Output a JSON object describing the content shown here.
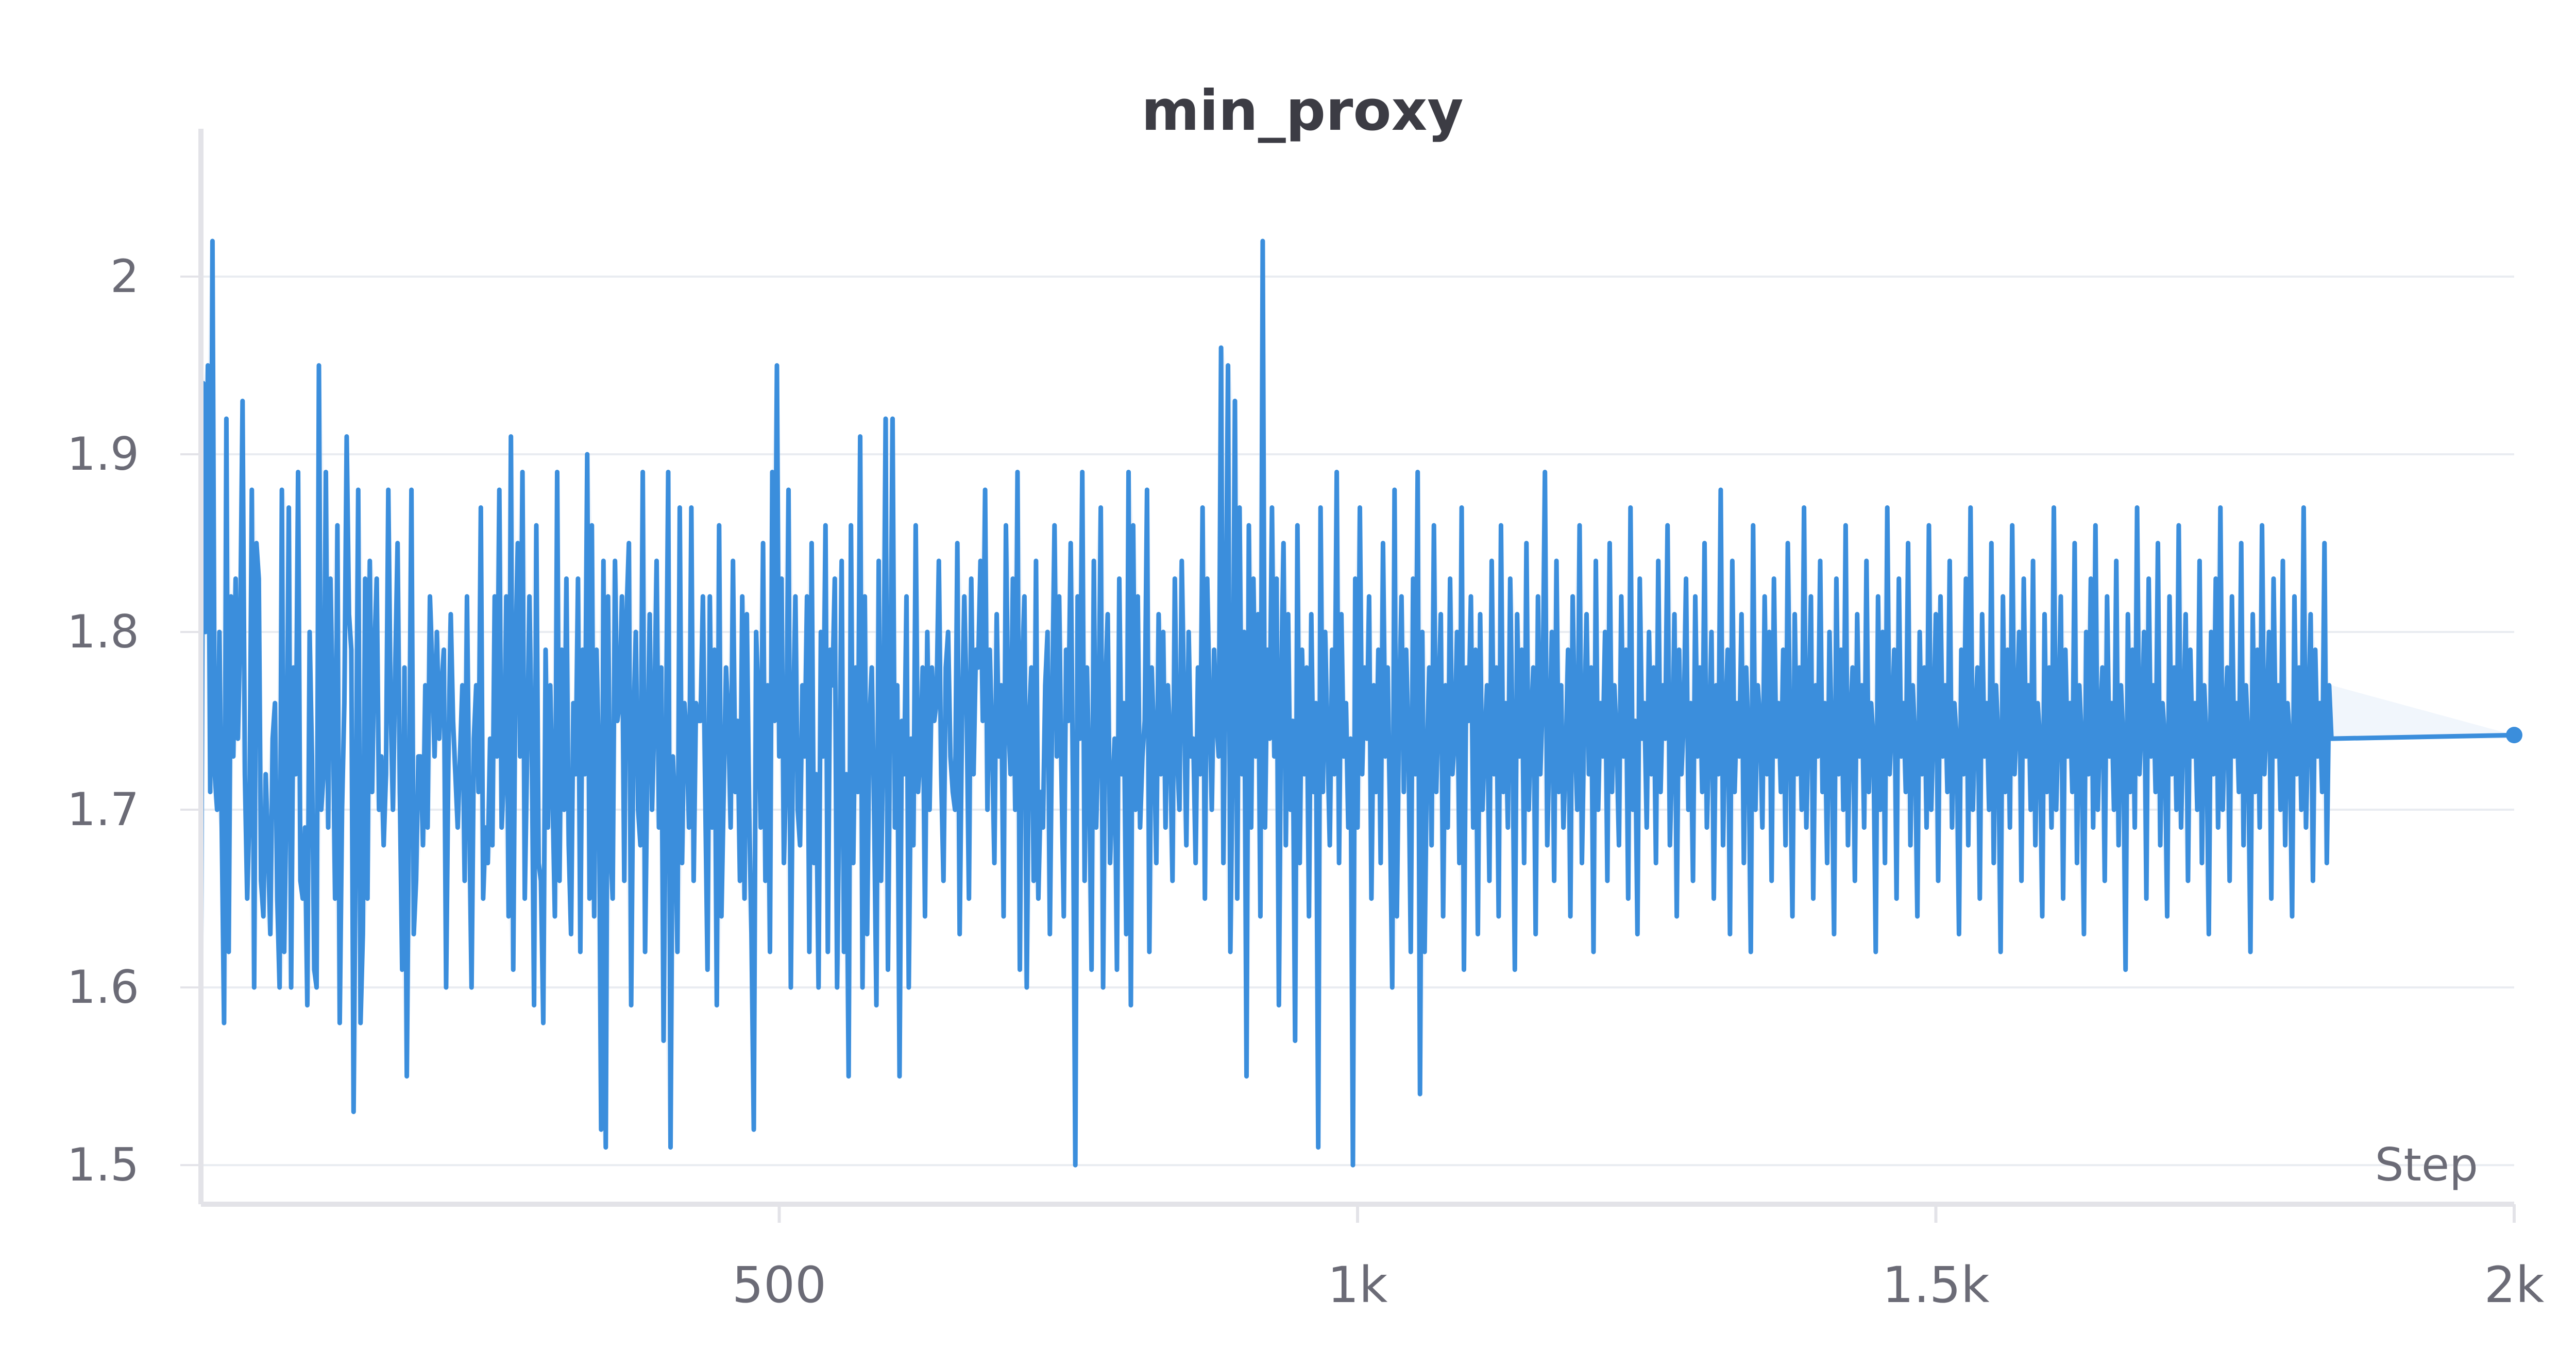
{
  "chart_data": {
    "type": "line",
    "title": "min_proxy",
    "xlabel": "Step",
    "ylabel": "",
    "xlim": [
      0,
      2000
    ],
    "ylim": [
      1.478,
      2.06
    ],
    "x_ticks": [
      500,
      1000,
      1500,
      2000
    ],
    "x_tick_labels": [
      "500",
      "1k",
      "1.5k",
      "2k"
    ],
    "y_ticks": [
      1.5,
      1.6,
      1.7,
      1.8,
      1.9,
      2.0
    ],
    "y_tick_labels": [
      "1.5",
      "1.6",
      "1.7",
      "1.8",
      "1.9",
      "2"
    ],
    "grid": true,
    "legend": "none",
    "series_color": "#3b8edc",
    "band_color": "#d6e6f5",
    "axis_color": "#e3e3e8",
    "grid_color": "#e9ecf1",
    "series": [
      {
        "step_start": 0,
        "step_interval": 2,
        "last_step": 2000,
        "last_value": 1.742,
        "values": [
          1.59,
          1.94,
          1.8,
          1.95,
          1.71,
          2.02,
          1.72,
          1.7,
          1.8,
          1.69,
          1.58,
          1.92,
          1.62,
          1.82,
          1.73,
          1.83,
          1.74,
          1.8,
          1.93,
          1.72,
          1.65,
          1.7,
          1.88,
          1.6,
          1.85,
          1.83,
          1.66,
          1.64,
          1.72,
          1.68,
          1.63,
          1.74,
          1.76,
          1.65,
          1.6,
          1.88,
          1.62,
          1.71,
          1.87,
          1.6,
          1.78,
          1.72,
          1.89,
          1.66,
          1.65,
          1.69,
          1.59,
          1.8,
          1.73,
          1.61,
          1.6,
          1.95,
          1.7,
          1.72,
          1.89,
          1.69,
          1.83,
          1.76,
          1.65,
          1.86,
          1.58,
          1.7,
          1.76,
          1.91,
          1.81,
          1.79,
          1.53,
          1.7,
          1.88,
          1.58,
          1.63,
          1.83,
          1.65,
          1.84,
          1.71,
          1.79,
          1.83,
          1.7,
          1.73,
          1.68,
          1.72,
          1.88,
          1.76,
          1.7,
          1.78,
          1.85,
          1.71,
          1.61,
          1.78,
          1.55,
          1.71,
          1.88,
          1.63,
          1.66,
          1.73,
          1.73,
          1.68,
          1.77,
          1.69,
          1.82,
          1.78,
          1.73,
          1.8,
          1.74,
          1.77,
          1.79,
          1.6,
          1.73,
          1.81,
          1.75,
          1.72,
          1.69,
          1.73,
          1.77,
          1.66,
          1.82,
          1.7,
          1.6,
          1.74,
          1.77,
          1.71,
          1.87,
          1.65,
          1.69,
          1.67,
          1.74,
          1.68,
          1.82,
          1.73,
          1.88,
          1.69,
          1.72,
          1.82,
          1.64,
          1.91,
          1.61,
          1.79,
          1.85,
          1.73,
          1.89,
          1.65,
          1.73,
          1.82,
          1.74,
          1.59,
          1.86,
          1.67,
          1.66,
          1.58,
          1.79,
          1.69,
          1.77,
          1.71,
          1.64,
          1.89,
          1.66,
          1.79,
          1.7,
          1.83,
          1.68,
          1.63,
          1.76,
          1.72,
          1.83,
          1.62,
          1.79,
          1.72,
          1.9,
          1.65,
          1.86,
          1.64,
          1.79,
          1.73,
          1.52,
          1.84,
          1.51,
          1.82,
          1.68,
          1.65,
          1.84,
          1.75,
          1.76,
          1.82,
          1.66,
          1.81,
          1.85,
          1.59,
          1.75,
          1.8,
          1.7,
          1.68,
          1.89,
          1.62,
          1.73,
          1.81,
          1.7,
          1.75,
          1.84,
          1.69,
          1.78,
          1.57,
          1.73,
          1.89,
          1.51,
          1.73,
          1.7,
          1.62,
          1.87,
          1.67,
          1.76,
          1.74,
          1.69,
          1.87,
          1.66,
          1.76,
          1.75,
          1.75,
          1.82,
          1.71,
          1.61,
          1.82,
          1.69,
          1.79,
          1.59,
          1.86,
          1.64,
          1.71,
          1.78,
          1.75,
          1.69,
          1.84,
          1.71,
          1.75,
          1.66,
          1.82,
          1.65,
          1.81,
          1.7,
          1.63,
          1.52,
          1.8,
          1.76,
          1.69,
          1.85,
          1.66,
          1.77,
          1.62,
          1.89,
          1.75,
          1.95,
          1.73,
          1.83,
          1.67,
          1.72,
          1.88,
          1.6,
          1.75,
          1.82,
          1.7,
          1.68,
          1.77,
          1.73,
          1.82,
          1.62,
          1.85,
          1.67,
          1.72,
          1.6,
          1.8,
          1.73,
          1.86,
          1.62,
          1.79,
          1.77,
          1.83,
          1.6,
          1.71,
          1.84,
          1.62,
          1.72,
          1.55,
          1.86,
          1.67,
          1.78,
          1.71,
          1.91,
          1.6,
          1.82,
          1.63,
          1.75,
          1.78,
          1.7,
          1.59,
          1.84,
          1.66,
          1.74,
          1.92,
          1.61,
          1.76,
          1.92,
          1.69,
          1.77,
          1.55,
          1.75,
          1.72,
          1.82,
          1.6,
          1.74,
          1.68,
          1.86,
          1.71,
          1.73,
          1.78,
          1.64,
          1.8,
          1.7,
          1.78,
          1.75,
          1.76,
          1.84,
          1.72,
          1.66,
          1.78,
          1.8,
          1.73,
          1.71,
          1.7,
          1.85,
          1.63,
          1.75,
          1.82,
          1.76,
          1.65,
          1.83,
          1.72,
          1.79,
          1.78,
          1.84,
          1.75,
          1.88,
          1.7,
          1.79,
          1.74,
          1.67,
          1.81,
          1.73,
          1.77,
          1.64,
          1.86,
          1.75,
          1.72,
          1.83,
          1.7,
          1.89,
          1.61,
          1.78,
          1.82,
          1.6,
          1.75,
          1.78,
          1.66,
          1.84,
          1.65,
          1.71,
          1.69,
          1.77,
          1.8,
          1.63,
          1.76,
          1.86,
          1.73,
          1.82,
          1.72,
          1.64,
          1.79,
          1.75,
          1.85,
          1.71,
          1.5,
          1.82,
          1.74,
          1.89,
          1.66,
          1.78,
          1.72,
          1.61,
          1.84,
          1.69,
          1.74,
          1.87,
          1.6,
          1.77,
          1.81,
          1.67,
          1.71,
          1.74,
          1.61,
          1.83,
          1.72,
          1.76,
          1.63,
          1.89,
          1.59,
          1.86,
          1.7,
          1.82,
          1.69,
          1.73,
          1.75,
          1.88,
          1.62,
          1.78,
          1.74,
          1.67,
          1.81,
          1.72,
          1.8,
          1.69,
          1.77,
          1.74,
          1.66,
          1.83,
          1.73,
          1.7,
          1.84,
          1.76,
          1.68,
          1.8,
          1.73,
          1.74,
          1.67,
          1.78,
          1.72,
          1.87,
          1.65,
          1.83,
          1.76,
          1.7,
          1.79,
          1.75,
          1.73,
          1.96,
          1.67,
          1.79,
          1.95,
          1.62,
          1.73,
          1.93,
          1.65,
          1.87,
          1.72,
          1.8,
          1.55,
          1.86,
          1.69,
          1.83,
          1.73,
          1.81,
          1.64,
          2.02,
          1.69,
          1.79,
          1.74,
          1.87,
          1.73,
          1.83,
          1.59,
          1.77,
          1.85,
          1.68,
          1.81,
          1.7,
          1.75,
          1.57,
          1.86,
          1.67,
          1.79,
          1.72,
          1.78,
          1.64,
          1.81,
          1.71,
          1.76,
          1.51,
          1.87,
          1.71,
          1.8,
          1.74,
          1.68,
          1.79,
          1.72,
          1.89,
          1.67,
          1.81,
          1.73,
          1.76,
          1.69,
          1.74,
          1.5,
          1.83,
          1.69,
          1.87,
          1.72,
          1.78,
          1.74,
          1.82,
          1.65,
          1.77,
          1.71,
          1.79,
          1.67,
          1.85,
          1.73,
          1.78,
          1.7,
          1.6,
          1.88,
          1.64,
          1.76,
          1.82,
          1.71,
          1.79,
          1.74,
          1.62,
          1.83,
          1.72,
          1.89,
          1.54,
          1.8,
          1.62,
          1.73,
          1.78,
          1.68,
          1.86,
          1.71,
          1.76,
          1.81,
          1.64,
          1.77,
          1.69,
          1.83,
          1.72,
          1.74,
          1.8,
          1.67,
          1.87,
          1.61,
          1.78,
          1.75,
          1.82,
          1.69,
          1.79,
          1.63,
          1.81,
          1.7,
          1.74,
          1.77,
          1.66,
          1.84,
          1.72,
          1.78,
          1.64,
          1.86,
          1.71,
          1.76,
          1.69,
          1.83,
          1.74,
          1.61,
          1.81,
          1.73,
          1.79,
          1.67,
          1.85,
          1.7,
          1.75,
          1.78,
          1.63,
          1.82,
          1.72,
          1.76,
          1.89,
          1.68,
          1.74,
          1.8,
          1.66,
          1.84,
          1.71,
          1.77,
          1.69,
          1.73,
          1.79,
          1.64,
          1.82,
          1.74,
          1.7,
          1.86,
          1.67,
          1.75,
          1.81,
          1.72,
          1.78,
          1.62,
          1.84,
          1.7,
          1.76,
          1.73,
          1.8,
          1.66,
          1.85,
          1.71,
          1.77,
          1.74,
          1.68,
          1.82,
          1.73,
          1.79,
          1.65,
          1.87,
          1.7,
          1.75,
          1.63,
          1.83,
          1.74,
          1.76,
          1.69,
          1.8,
          1.72,
          1.78,
          1.67,
          1.84,
          1.71,
          1.77,
          1.74,
          1.86,
          1.68,
          1.73,
          1.81,
          1.64,
          1.79,
          1.72,
          1.75,
          1.83,
          1.7,
          1.76,
          1.66,
          1.82,
          1.73,
          1.78,
          1.71,
          1.85,
          1.69,
          1.74,
          1.8,
          1.65,
          1.77,
          1.72,
          1.88,
          1.68,
          1.75,
          1.79,
          1.63,
          1.84,
          1.71,
          1.76,
          1.73,
          1.81,
          1.67,
          1.78,
          1.74,
          1.62,
          1.86,
          1.7,
          1.77,
          1.75,
          1.69,
          1.82,
          1.72,
          1.8,
          1.66,
          1.83,
          1.73,
          1.76,
          1.71,
          1.79,
          1.68,
          1.85,
          1.74,
          1.64,
          1.81,
          1.72,
          1.78,
          1.7,
          1.87,
          1.69,
          1.75,
          1.82,
          1.65,
          1.77,
          1.73,
          1.84,
          1.71,
          1.76,
          1.67,
          1.8,
          1.74,
          1.63,
          1.83,
          1.72,
          1.79,
          1.7,
          1.86,
          1.68,
          1.75,
          1.78,
          1.66,
          1.81,
          1.73,
          1.77,
          1.69,
          1.84,
          1.71,
          1.76,
          1.74,
          1.62,
          1.82,
          1.7,
          1.8,
          1.67,
          1.87,
          1.72,
          1.75,
          1.79,
          1.65,
          1.83,
          1.73,
          1.76,
          1.71,
          1.85,
          1.68,
          1.77,
          1.74,
          1.64,
          1.8,
          1.72,
          1.78,
          1.69,
          1.86,
          1.7,
          1.75,
          1.81,
          1.66,
          1.82,
          1.73,
          1.77,
          1.71,
          1.84,
          1.69,
          1.76,
          1.74,
          1.63,
          1.79,
          1.72,
          1.83,
          1.68,
          1.87,
          1.7,
          1.75,
          1.78,
          1.65,
          1.81,
          1.73,
          1.76,
          1.7,
          1.85,
          1.67,
          1.77,
          1.74,
          1.62,
          1.82,
          1.71,
          1.79,
          1.69,
          1.86,
          1.72,
          1.75,
          1.8,
          1.66,
          1.83,
          1.73,
          1.77,
          1.7,
          1.84,
          1.68,
          1.76,
          1.74,
          1.64,
          1.81,
          1.71,
          1.78,
          1.69,
          1.87,
          1.7,
          1.75,
          1.82,
          1.65,
          1.79,
          1.73,
          1.76,
          1.71,
          1.85,
          1.67,
          1.77,
          1.74,
          1.63,
          1.8,
          1.72,
          1.83,
          1.69,
          1.86,
          1.7,
          1.75,
          1.78,
          1.66,
          1.82,
          1.73,
          1.76,
          1.7,
          1.84,
          1.68,
          1.77,
          1.74,
          1.61,
          1.81,
          1.71,
          1.79,
          1.69,
          1.87,
          1.72,
          1.75,
          1.8,
          1.65,
          1.83,
          1.73,
          1.77,
          1.71,
          1.85,
          1.68,
          1.76,
          1.74,
          1.64,
          1.82,
          1.72,
          1.78,
          1.7,
          1.86,
          1.69,
          1.75,
          1.81,
          1.66,
          1.79,
          1.73,
          1.76,
          1.7,
          1.84,
          1.67,
          1.77,
          1.74,
          1.63,
          1.8,
          1.72,
          1.83,
          1.69,
          1.87,
          1.7,
          1.75,
          1.78,
          1.66,
          1.82,
          1.73,
          1.76,
          1.71,
          1.85,
          1.68,
          1.77,
          1.74,
          1.62,
          1.81,
          1.71,
          1.79,
          1.69,
          1.86,
          1.72,
          1.75,
          1.8,
          1.65,
          1.83,
          1.73,
          1.77,
          1.7,
          1.84,
          1.68,
          1.76,
          1.74,
          1.64,
          1.82,
          1.72,
          1.78,
          1.7,
          1.87,
          1.69,
          1.75,
          1.81,
          1.66,
          1.79,
          1.73,
          1.76,
          1.71,
          1.85,
          1.67,
          1.77,
          1.74
        ]
      }
    ]
  }
}
